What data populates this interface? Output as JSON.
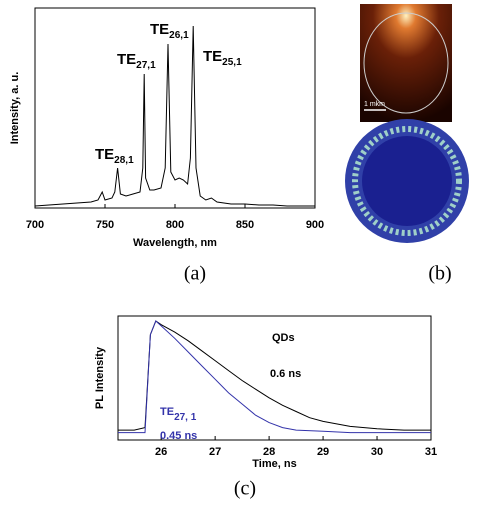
{
  "chart_data": [
    {
      "type": "line",
      "x_label": "Wavelength, nm",
      "y_label": "Intensity, a. u.",
      "panel_label": "(a)",
      "xlim": [
        700,
        900
      ],
      "xticks": [
        700,
        750,
        800,
        850,
        900
      ],
      "ylim": [
        0,
        100
      ],
      "series": [
        {
          "color": "#000000",
          "x": [
            700,
            710,
            720,
            730,
            740,
            745,
            748,
            750,
            755,
            757,
            759,
            761,
            765,
            770,
            775,
            777,
            778,
            779,
            782,
            785,
            790,
            793,
            795,
            797,
            800,
            803,
            806,
            809,
            811,
            813,
            815,
            818,
            822,
            826,
            830,
            840,
            850,
            860,
            870,
            880,
            890,
            900
          ],
          "values": [
            1,
            1.5,
            2,
            2.5,
            3,
            4,
            8,
            4,
            5,
            8,
            20,
            7,
            6,
            7,
            8,
            20,
            67,
            15,
            9,
            9,
            10,
            20,
            82,
            18,
            14,
            15,
            14,
            12,
            25,
            91,
            20,
            6,
            4,
            5,
            3,
            2,
            2,
            1.5,
            1.5,
            1,
            1,
            1
          ]
        }
      ],
      "annotations": [
        {
          "text": "TE",
          "sub": "28,1"
        },
        {
          "text": "TE",
          "sub": "27,1"
        },
        {
          "text": "TE",
          "sub": "26,1"
        },
        {
          "text": "TE",
          "sub": "25,1"
        }
      ]
    },
    {
      "type": "image",
      "panel_label": "(b)",
      "scale_label": "1 mkm"
    },
    {
      "type": "line",
      "x_label": "Time, ns",
      "y_label": "PL Intensity",
      "panel_label": "(c)",
      "xlim": [
        25.2,
        31
      ],
      "xticks": [
        26,
        27,
        28,
        29,
        30,
        31
      ],
      "ylim": [
        0,
        100
      ],
      "series": [
        {
          "color": "#000000",
          "x": [
            25.2,
            25.5,
            25.7,
            25.8,
            25.9,
            26,
            26.25,
            26.5,
            26.75,
            27,
            27.25,
            27.5,
            27.75,
            28,
            28.25,
            28.5,
            28.75,
            29,
            29.5,
            30,
            30.5,
            31
          ],
          "values": [
            8,
            8,
            10,
            85,
            96,
            93,
            87,
            80,
            72,
            64,
            56,
            48,
            41,
            34,
            28,
            23,
            18,
            15,
            11,
            9,
            8,
            8
          ]
        },
        {
          "color": "#3333aa",
          "x": [
            25.2,
            25.7,
            25.8,
            25.9,
            26,
            26.25,
            26.5,
            26.75,
            27,
            27.25,
            27.5,
            27.75,
            28,
            28.25,
            28.5,
            29,
            29.5,
            30,
            31
          ],
          "values": [
            6,
            6,
            85,
            96,
            92,
            82,
            71,
            60,
            49,
            38,
            29,
            20,
            14,
            10,
            8,
            7,
            6,
            6,
            6
          ]
        }
      ],
      "annotations": [
        {
          "text": "QDs"
        },
        {
          "text": "0.6 ns"
        },
        {
          "text": "TE",
          "sub": "27, 1"
        },
        {
          "text": "0.45 ns"
        }
      ]
    }
  ]
}
